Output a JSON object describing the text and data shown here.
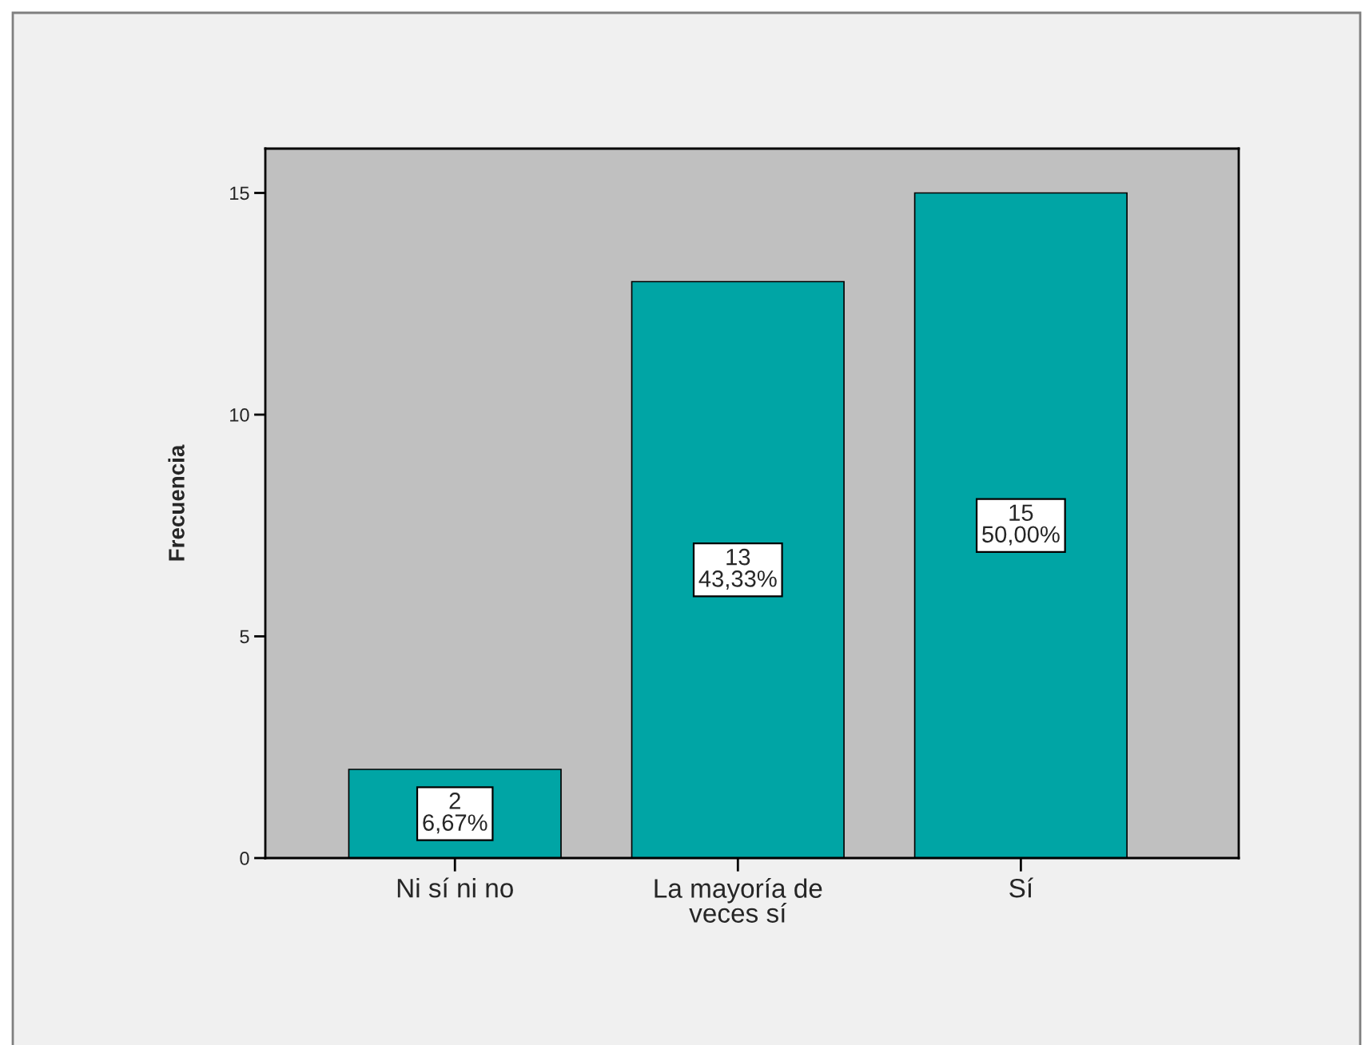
{
  "chart_data": {
    "type": "bar",
    "categories": [
      "Ni sí ni no",
      "La mayoría de\nveces sí",
      "Sí"
    ],
    "values": [
      2,
      13,
      15
    ],
    "value_labels": [
      "2\n6,67%",
      "13\n43,33%",
      "15\n50,00%"
    ],
    "color": "#00a5a5",
    "ylabel": "Frecuencia",
    "ylim": [
      0,
      16
    ],
    "yticks": [
      0,
      5,
      10,
      15
    ],
    "grid": false,
    "legend": false
  }
}
